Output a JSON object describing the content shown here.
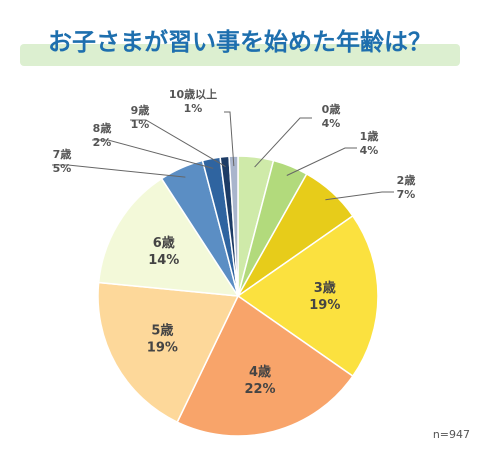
{
  "title": "お子さまが習い事を始めた年齢は？",
  "note": "n=947",
  "colors": {
    "title_band": "#dcefd0",
    "title_text": "#1e6fae",
    "leader": "#666666",
    "slice_border": "#ffffff"
  },
  "chart_data": {
    "type": "pie",
    "title": "お子さまが習い事を始めた年齢は？",
    "start": "12 o'clock, clockwise",
    "slices": [
      {
        "label": "0歳",
        "pct_label": "4%",
        "value": 4,
        "color": "#cfeaa9"
      },
      {
        "label": "1歳",
        "pct_label": "4%",
        "value": 4,
        "color": "#b2da7c"
      },
      {
        "label": "2歳",
        "pct_label": "7%",
        "value": 7,
        "color": "#e7cc1a"
      },
      {
        "label": "3歳",
        "pct_label": "19%",
        "value": 19,
        "color": "#fbe13f"
      },
      {
        "label": "4歳",
        "pct_label": "22%",
        "value": 22,
        "color": "#f8a46a"
      },
      {
        "label": "5歳",
        "pct_label": "19%",
        "value": 19,
        "color": "#fdd89a"
      },
      {
        "label": "6歳",
        "pct_label": "14%",
        "value": 14,
        "color": "#f3f9d9"
      },
      {
        "label": "7歳",
        "pct_label": "5%",
        "value": 5,
        "color": "#5b8ec4"
      },
      {
        "label": "8歳",
        "pct_label": "2%",
        "value": 2,
        "color": "#2f64a0"
      },
      {
        "label": "9歳",
        "pct_label": "1%",
        "value": 1,
        "color": "#1d3c66"
      },
      {
        "label": "10歳以上",
        "pct_label": "1%",
        "value": 1,
        "color": "#a9b5cc"
      }
    ]
  }
}
